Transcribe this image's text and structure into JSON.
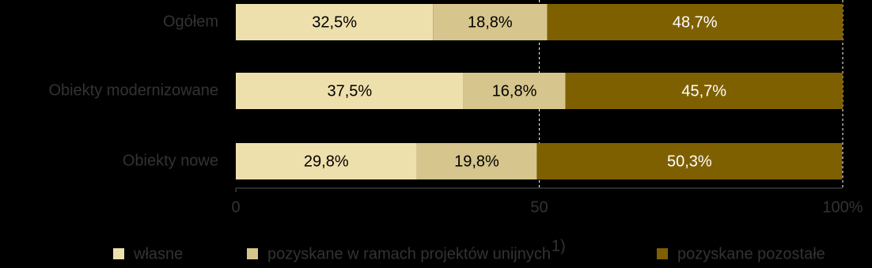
{
  "chart_data": {
    "type": "stacked-bar-horizontal",
    "categories": [
      "Ogółem",
      "Obiekty modernizowane",
      "Obiekty nowe"
    ],
    "series": [
      {
        "name": "własne",
        "color": "#eee0ad",
        "values": [
          32.5,
          37.5,
          29.8
        ],
        "value_labels": [
          "32,5%",
          "37,5%",
          "29,8%"
        ]
      },
      {
        "name": "pozyskane w ramach projektów unijnych",
        "name_note": "1)",
        "color": "#d6c58c",
        "values": [
          18.8,
          16.8,
          19.8
        ],
        "value_labels": [
          "18,8%",
          "16,8%",
          "19,8%"
        ]
      },
      {
        "name": "pozyskane pozostałe",
        "color": "#7f6000",
        "values": [
          48.7,
          45.7,
          50.3
        ],
        "value_labels": [
          "48,7%",
          "45,7%",
          "50,3%"
        ]
      }
    ],
    "xlim": [
      0,
      100
    ],
    "xticks": [
      0,
      50,
      {
        "value": 100,
        "label": "100%"
      }
    ],
    "grid": true
  }
}
